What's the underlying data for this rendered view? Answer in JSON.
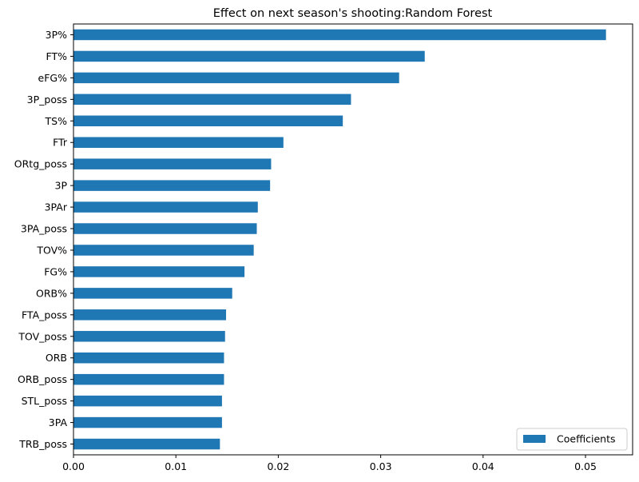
{
  "chart_data": {
    "type": "bar",
    "orientation": "horizontal",
    "title": "Effect on next season's shooting:Random Forest",
    "xlabel": "",
    "ylabel": "",
    "categories": [
      "3P%",
      "FT%",
      "eFG%",
      "3P_poss",
      "TS%",
      "FTr",
      "ORtg_poss",
      "3P",
      "3PAr",
      "3PA_poss",
      "TOV%",
      "FG%",
      "ORB%",
      "FTA_poss",
      "TOV_poss",
      "ORB",
      "ORB_poss",
      "STL_poss",
      "3PA",
      "TRB_poss"
    ],
    "series": [
      {
        "name": "Coefficients",
        "color": "#1f77b4",
        "values": [
          0.052,
          0.0343,
          0.0318,
          0.0271,
          0.0263,
          0.0205,
          0.0193,
          0.0192,
          0.018,
          0.0179,
          0.0176,
          0.0167,
          0.0155,
          0.0149,
          0.0148,
          0.0147,
          0.0147,
          0.0145,
          0.0145,
          0.0143
        ]
      }
    ],
    "xlim": [
      0.0,
      0.0546
    ],
    "xticks": [
      "0.00",
      "0.01",
      "0.02",
      "0.03",
      "0.04",
      "0.05"
    ],
    "xtick_values": [
      0.0,
      0.01,
      0.02,
      0.03,
      0.04,
      0.05
    ],
    "grid": false,
    "legend_position": "lower-right"
  }
}
